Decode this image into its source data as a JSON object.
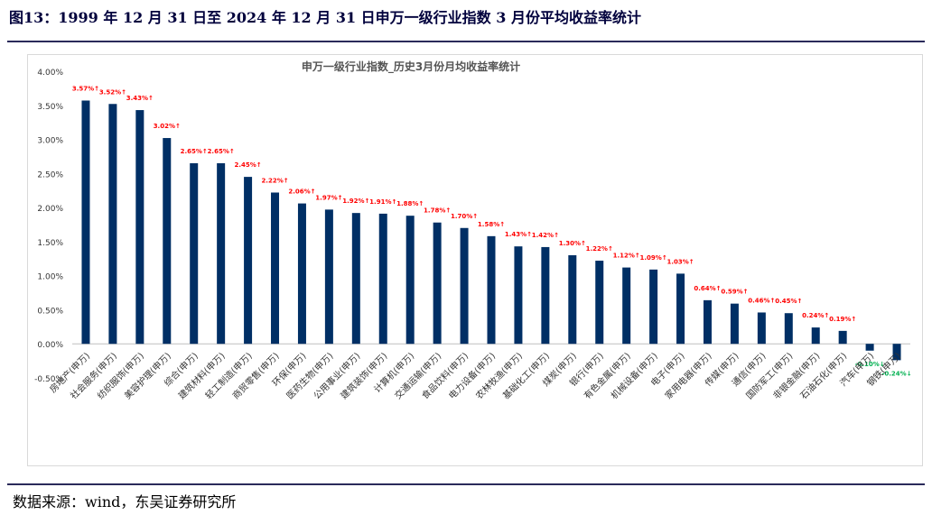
{
  "figure": {
    "title": "图13：1999 年 12 月 31 日至 2024 年 12 月 31 日申万一级行业指数 3 月份平均收益率统计",
    "source": "数据来源：wind，东吴证券研究所"
  },
  "colors": {
    "bar": "#002f65",
    "positive_label": "#ff0000",
    "negative_label": "#00b050",
    "axis": "#333333"
  },
  "chart_data": {
    "type": "bar",
    "title": "申万一级行业指数_历史3月份月均收益率统计",
    "xlabel": "",
    "ylabel": "",
    "ylim": [
      -0.5,
      4.0
    ],
    "yticks": [
      -0.5,
      0.0,
      0.5,
      1.0,
      1.5,
      2.0,
      2.5,
      3.0,
      3.5,
      4.0
    ],
    "ytick_labels": [
      "-0.50%",
      "0.00%",
      "0.50%",
      "1.00%",
      "1.50%",
      "2.00%",
      "2.50%",
      "3.00%",
      "3.50%",
      "4.00%"
    ],
    "grid": false,
    "legend": "none",
    "categories": [
      "房地产(申万)",
      "社会服务(申万)",
      "纺织服饰(申万)",
      "美容护理(申万)",
      "综合(申万)",
      "建筑材料(申万)",
      "轻工制造(申万)",
      "商贸零售(申万)",
      "环保(申万)",
      "医药生物(申万)",
      "公用事业(申万)",
      "建筑装饰(申万)",
      "计算机(申万)",
      "交通运输(申万)",
      "食品饮料(申万)",
      "电力设备(申万)",
      "农林牧渔(申万)",
      "基础化工(申万)",
      "煤炭(申万)",
      "银行(申万)",
      "有色金属(申万)",
      "机械设备(申万)",
      "电子(申万)",
      "家用电器(申万)",
      "传媒(申万)",
      "通信(申万)",
      "国防军工(申万)",
      "非银金融(申万)",
      "石油石化(申万)",
      "汽车(申万)",
      "钢铁(申万)"
    ],
    "values": [
      3.57,
      3.52,
      3.43,
      3.02,
      2.65,
      2.65,
      2.45,
      2.22,
      2.06,
      1.97,
      1.92,
      1.91,
      1.88,
      1.78,
      1.7,
      1.58,
      1.43,
      1.42,
      1.3,
      1.22,
      1.12,
      1.09,
      1.03,
      0.64,
      0.59,
      0.46,
      0.45,
      0.24,
      0.19,
      -0.1,
      -0.24
    ],
    "data_labels": [
      "3.57%↑",
      "3.52%↑",
      "3.43%↑",
      "3.02%↑",
      "2.65%↑",
      "2.65%↑",
      "2.45%↑",
      "2.22%↑",
      "2.06%↑",
      "1.97%↑",
      "1.92%↑",
      "1.91%↑",
      "1.88%↑",
      "1.78%↑",
      "1.70%↑",
      "1.58%↑",
      "1.43%↑",
      "1.42%↑",
      "1.30%↑",
      "1.22%↑",
      "1.12%↑",
      "1.09%↑",
      "1.03%↑",
      "0.64%↑",
      "0.59%↑",
      "0.46%↑",
      "0.45%↑",
      "0.24%↑",
      "0.19%↑",
      "-0.10%↓",
      "-0.24%↓"
    ]
  }
}
